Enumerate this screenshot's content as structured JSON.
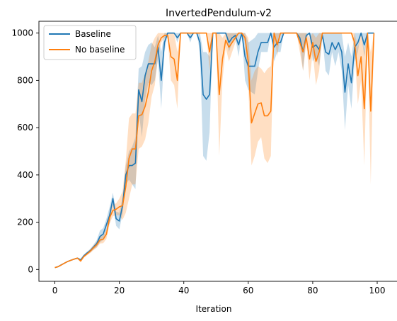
{
  "chart_data": {
    "type": "line",
    "title": "InvertedPendulum-v2",
    "xlabel": "Iteration",
    "ylabel": "",
    "xlim": [
      -4.95,
      103.95
    ],
    "ylim": [
      -50,
      1050
    ],
    "xticks": [
      0,
      20,
      40,
      60,
      80,
      100
    ],
    "yticks": [
      0,
      200,
      400,
      600,
      800,
      1000
    ],
    "legend_position": "upper-left",
    "series": [
      {
        "name": "Baseline",
        "color": "#1f77b4",
        "band_color": "#1f77b4",
        "band_opacity": 0.25,
        "x": [
          0,
          1,
          2,
          3,
          4,
          5,
          6,
          7,
          8,
          9,
          10,
          11,
          12,
          13,
          14,
          15,
          16,
          17,
          18,
          19,
          20,
          21,
          22,
          23,
          24,
          25,
          26,
          27,
          28,
          29,
          30,
          31,
          32,
          33,
          34,
          35,
          36,
          37,
          38,
          39,
          40,
          41,
          42,
          43,
          44,
          45,
          46,
          47,
          48,
          49,
          50,
          51,
          52,
          53,
          54,
          55,
          56,
          57,
          58,
          59,
          60,
          61,
          62,
          63,
          64,
          65,
          66,
          67,
          68,
          69,
          70,
          71,
          72,
          73,
          74,
          75,
          76,
          77,
          78,
          79,
          80,
          81,
          82,
          83,
          84,
          85,
          86,
          87,
          88,
          89,
          90,
          91,
          92,
          93,
          94,
          95,
          96,
          97,
          98,
          99
        ],
        "values": [
          8,
          12,
          20,
          27,
          34,
          39,
          44,
          48,
          40,
          58,
          70,
          80,
          95,
          110,
          140,
          150,
          190,
          230,
          300,
          215,
          205,
          270,
          400,
          440,
          440,
          450,
          760,
          710,
          820,
          870,
          870,
          870,
          940,
          800,
          960,
          1000,
          1000,
          1000,
          980,
          1000,
          1000,
          1000,
          980,
          1000,
          1000,
          960,
          740,
          720,
          740,
          1000,
          1000,
          1000,
          1000,
          1000,
          960,
          980,
          990,
          950,
          1000,
          900,
          860,
          860,
          860,
          920,
          960,
          960,
          960,
          1000,
          940,
          960,
          960,
          1000,
          1000,
          1000,
          1000,
          1000,
          980,
          920,
          990,
          1000,
          940,
          950,
          930,
          990,
          920,
          910,
          960,
          930,
          960,
          920,
          750,
          870,
          790,
          940,
          960,
          1000,
          950,
          1000,
          1000,
          1000
        ],
        "upper": [
          9,
          14,
          22,
          29,
          36,
          41,
          46,
          51,
          46,
          64,
          76,
          88,
          105,
          125,
          165,
          175,
          215,
          265,
          325,
          245,
          240,
          305,
          440,
          500,
          520,
          560,
          850,
          860,
          920,
          950,
          960,
          940,
          990,
          920,
          1000,
          1000,
          1000,
          1000,
          1000,
          1000,
          1000,
          1000,
          1000,
          1000,
          1000,
          1000,
          920,
          920,
          900,
          1000,
          1000,
          1000,
          1000,
          1000,
          1000,
          1000,
          1000,
          1000,
          1000,
          1000,
          960,
          970,
          980,
          1000,
          1000,
          1000,
          1000,
          1000,
          1000,
          1000,
          1000,
          1000,
          1000,
          1000,
          1000,
          1000,
          1000,
          1000,
          1000,
          1000,
          1000,
          1000,
          1000,
          1000,
          1000,
          1000,
          1000,
          1000,
          1000,
          1000,
          900,
          960,
          900,
          1000,
          1000,
          1000,
          1000,
          1000,
          1000,
          1000
        ],
        "lower": [
          7,
          10,
          18,
          25,
          32,
          37,
          42,
          45,
          34,
          52,
          64,
          72,
          85,
          95,
          115,
          125,
          165,
          195,
          275,
          185,
          170,
          235,
          360,
          380,
          360,
          340,
          670,
          560,
          720,
          790,
          780,
          800,
          890,
          680,
          920,
          1000,
          1000,
          1000,
          960,
          1000,
          1000,
          1000,
          960,
          1000,
          1000,
          920,
          480,
          460,
          580,
          1000,
          1000,
          1000,
          1000,
          1000,
          920,
          960,
          980,
          900,
          1000,
          800,
          760,
          750,
          740,
          840,
          920,
          920,
          920,
          1000,
          880,
          920,
          920,
          1000,
          1000,
          1000,
          1000,
          1000,
          960,
          840,
          980,
          1000,
          880,
          900,
          860,
          980,
          840,
          820,
          920,
          860,
          920,
          840,
          590,
          780,
          680,
          880,
          920,
          1000,
          900,
          1000,
          1000,
          1000
        ]
      },
      {
        "name": "No baseline",
        "color": "#ff7f0e",
        "band_color": "#ff7f0e",
        "band_opacity": 0.25,
        "x": [
          0,
          1,
          2,
          3,
          4,
          5,
          6,
          7,
          8,
          9,
          10,
          11,
          12,
          13,
          14,
          15,
          16,
          17,
          18,
          19,
          20,
          21,
          22,
          23,
          24,
          25,
          26,
          27,
          28,
          29,
          30,
          31,
          32,
          33,
          34,
          35,
          36,
          37,
          38,
          39,
          40,
          41,
          42,
          43,
          44,
          45,
          46,
          47,
          48,
          49,
          50,
          51,
          52,
          53,
          54,
          55,
          56,
          57,
          58,
          59,
          60,
          61,
          62,
          63,
          64,
          65,
          66,
          67,
          68,
          69,
          70,
          71,
          72,
          73,
          74,
          75,
          76,
          77,
          78,
          79,
          80,
          81,
          82,
          83,
          84,
          85,
          86,
          87,
          88,
          89,
          90,
          91,
          92,
          93,
          94,
          95,
          96,
          97,
          98,
          99
        ],
        "values": [
          8,
          12,
          19,
          27,
          34,
          39,
          44,
          48,
          36,
          55,
          66,
          78,
          92,
          105,
          125,
          128,
          150,
          220,
          250,
          255,
          265,
          270,
          350,
          470,
          510,
          510,
          650,
          655,
          690,
          750,
          840,
          880,
          950,
          980,
          990,
          990,
          900,
          890,
          800,
          1000,
          1000,
          1000,
          1000,
          1000,
          1000,
          1000,
          1000,
          1000,
          920,
          1000,
          1000,
          740,
          890,
          970,
          940,
          960,
          980,
          1000,
          1000,
          980,
          880,
          620,
          660,
          700,
          705,
          650,
          650,
          670,
          1000,
          950,
          1000,
          1000,
          1000,
          1000,
          1000,
          1000,
          960,
          920,
          980,
          890,
          960,
          880,
          920,
          1000,
          1000,
          1000,
          1000,
          1000,
          1000,
          1000,
          1000,
          1000,
          1000,
          960,
          820,
          900,
          680,
          1000,
          670,
          1000
        ],
        "upper": [
          9,
          14,
          21,
          29,
          36,
          41,
          46,
          51,
          42,
          60,
          72,
          86,
          102,
          118,
          140,
          145,
          170,
          245,
          275,
          280,
          300,
          330,
          460,
          640,
          660,
          660,
          790,
          790,
          830,
          880,
          950,
          980,
          1000,
          1000,
          1000,
          1000,
          1000,
          1000,
          920,
          1000,
          1000,
          1000,
          1000,
          1000,
          1000,
          1000,
          1000,
          1000,
          1000,
          1000,
          1000,
          1000,
          980,
          1000,
          1000,
          1000,
          1000,
          1000,
          1000,
          1000,
          980,
          800,
          840,
          860,
          850,
          830,
          850,
          860,
          1000,
          1000,
          1000,
          1000,
          1000,
          1000,
          1000,
          1000,
          1000,
          1000,
          1000,
          980,
          1000,
          980,
          1000,
          1000,
          1000,
          1000,
          1000,
          1000,
          1000,
          1000,
          1000,
          1000,
          1000,
          1000,
          940,
          1000,
          920,
          1000,
          920,
          1000
        ],
        "lower": [
          7,
          10,
          17,
          25,
          32,
          37,
          42,
          45,
          30,
          50,
          60,
          70,
          82,
          92,
          110,
          111,
          130,
          195,
          225,
          230,
          230,
          210,
          240,
          300,
          360,
          360,
          510,
          520,
          550,
          620,
          730,
          780,
          900,
          960,
          980,
          980,
          800,
          780,
          680,
          1000,
          1000,
          1000,
          1000,
          1000,
          1000,
          1000,
          1000,
          1000,
          840,
          1000,
          1000,
          480,
          800,
          940,
          880,
          920,
          960,
          1000,
          1000,
          960,
          780,
          440,
          480,
          540,
          560,
          470,
          450,
          480,
          1000,
          900,
          1000,
          1000,
          1000,
          1000,
          1000,
          1000,
          920,
          840,
          960,
          800,
          920,
          780,
          840,
          1000,
          1000,
          1000,
          1000,
          1000,
          1000,
          1000,
          1000,
          1000,
          1000,
          920,
          700,
          800,
          440,
          1000,
          360,
          1000
        ]
      }
    ]
  }
}
